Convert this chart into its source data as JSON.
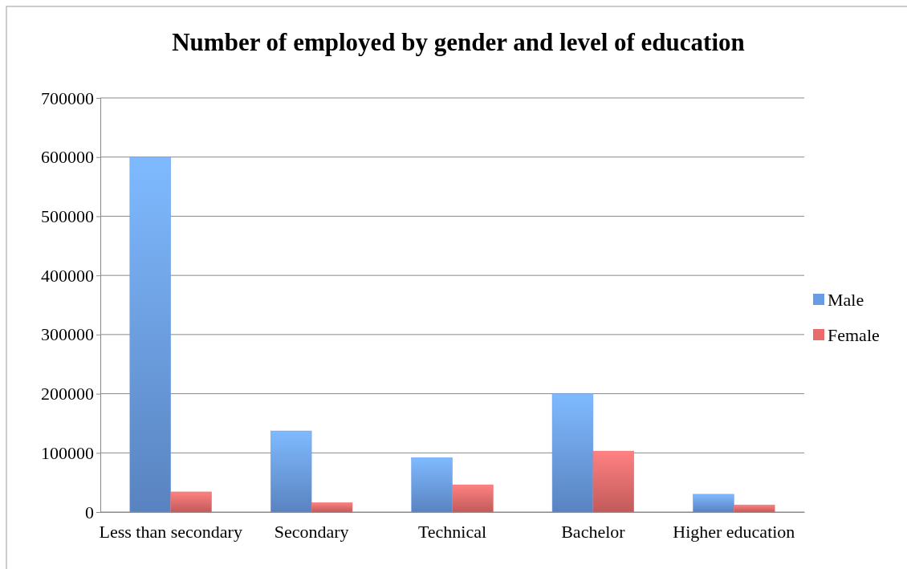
{
  "chart_data": {
    "type": "bar",
    "title": "Number of employed by gender and level of education",
    "categories": [
      "Less than secondary",
      "Secondary",
      "Technical",
      "Bachelor",
      "Higher education"
    ],
    "series": [
      {
        "name": "Male",
        "color": "#6a9ce6",
        "values": [
          600000,
          137000,
          92000,
          200000,
          30000
        ]
      },
      {
        "name": "Female",
        "color": "#e86c6c",
        "values": [
          34000,
          16000,
          46000,
          103000,
          12000
        ]
      }
    ],
    "ylim": [
      0,
      700000
    ],
    "yticks": [
      0,
      100000,
      200000,
      300000,
      400000,
      500000,
      600000,
      700000
    ],
    "grid": "y",
    "legend": "right"
  }
}
